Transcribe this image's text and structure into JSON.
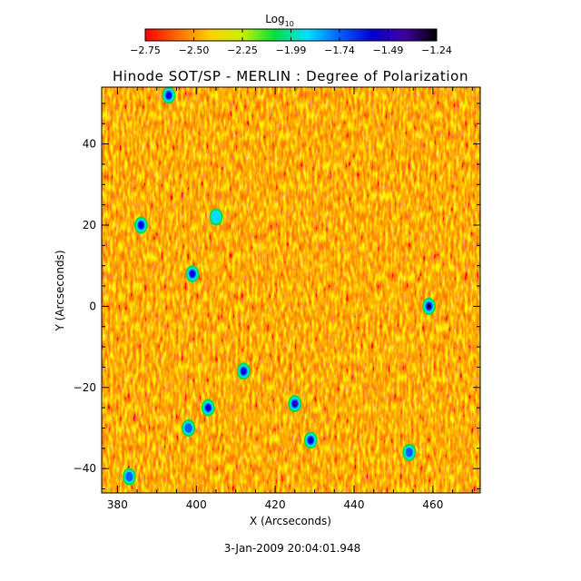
{
  "colorbar": {
    "label_base": "Log",
    "label_sub": "10",
    "ticks": [
      "-2.75",
      "-2.50",
      "-2.25",
      "-1.99",
      "-1.74",
      "-1.49",
      "-1.24"
    ],
    "colormap": [
      "#ff0000",
      "#ff6a00",
      "#ffd000",
      "#c8f000",
      "#00e040",
      "#00e0ff",
      "#0060ff",
      "#0000d0",
      "#4000a0",
      "#000000"
    ]
  },
  "chart_data": {
    "type": "heatmap",
    "title": "Hinode SOT/SP - MERLIN : Degree of Polarization",
    "xlabel": "X (Arcseconds)",
    "ylabel": "Y (Arcseconds)",
    "xlim": [
      376,
      472
    ],
    "ylim": [
      -46,
      54
    ],
    "xticks": [
      380,
      400,
      420,
      440,
      460
    ],
    "yticks": [
      -40,
      -20,
      0,
      20,
      40
    ],
    "color_range": [
      -2.75,
      -1.24
    ],
    "color_scale": "log10",
    "background_level": -2.6,
    "features": [
      {
        "x": 459,
        "y": 0,
        "value": -1.3
      },
      {
        "x": 425,
        "y": -24,
        "value": -1.4
      },
      {
        "x": 403,
        "y": -25,
        "value": -1.5
      },
      {
        "x": 398,
        "y": -30,
        "value": -1.7
      },
      {
        "x": 386,
        "y": 20,
        "value": -1.5
      },
      {
        "x": 393,
        "y": 52,
        "value": -1.5
      },
      {
        "x": 399,
        "y": 8,
        "value": -1.6
      },
      {
        "x": 412,
        "y": -16,
        "value": -1.6
      },
      {
        "x": 429,
        "y": -33,
        "value": -1.5
      },
      {
        "x": 383,
        "y": -42,
        "value": -1.8
      },
      {
        "x": 405,
        "y": 22,
        "value": -1.9
      },
      {
        "x": 454,
        "y": -36,
        "value": -1.7
      }
    ]
  },
  "footer": {
    "timestamp": "3-Jan-2009 20:04:01.948"
  }
}
